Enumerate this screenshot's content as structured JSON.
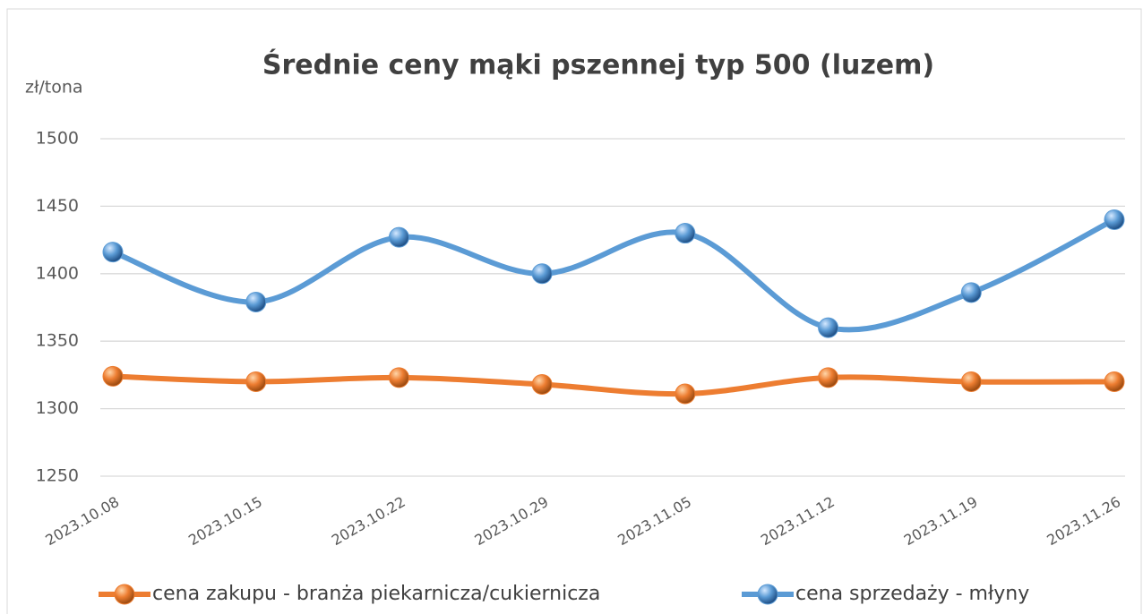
{
  "chart_data": {
    "type": "line",
    "title": "Średnie ceny mąki pszennej typ 500 (luzem)",
    "y_label": "zł/tona",
    "categories": [
      "2023.10.08",
      "2023.10.15",
      "2023.10.22",
      "2023.10.29",
      "2023.11.05",
      "2023.11.12",
      "2023.11.19",
      "2023.11.26"
    ],
    "series": [
      {
        "name": "cena zakupu - branża piekarnicza/cukiernicza",
        "color": "#ed7d31",
        "values": [
          1324,
          1320,
          1323,
          1318,
          1311,
          1323,
          1320,
          1320
        ]
      },
      {
        "name": "cena sprzedaży - młyny",
        "color": "#5b9bd5",
        "values": [
          1416,
          1379,
          1427,
          1400,
          1430,
          1360,
          1386,
          1440
        ]
      }
    ],
    "ylim": [
      1250,
      1500
    ],
    "yticks": [
      1250,
      1300,
      1350,
      1400,
      1450,
      1500
    ],
    "grid": true,
    "smooth": true,
    "legend": "bottom"
  }
}
